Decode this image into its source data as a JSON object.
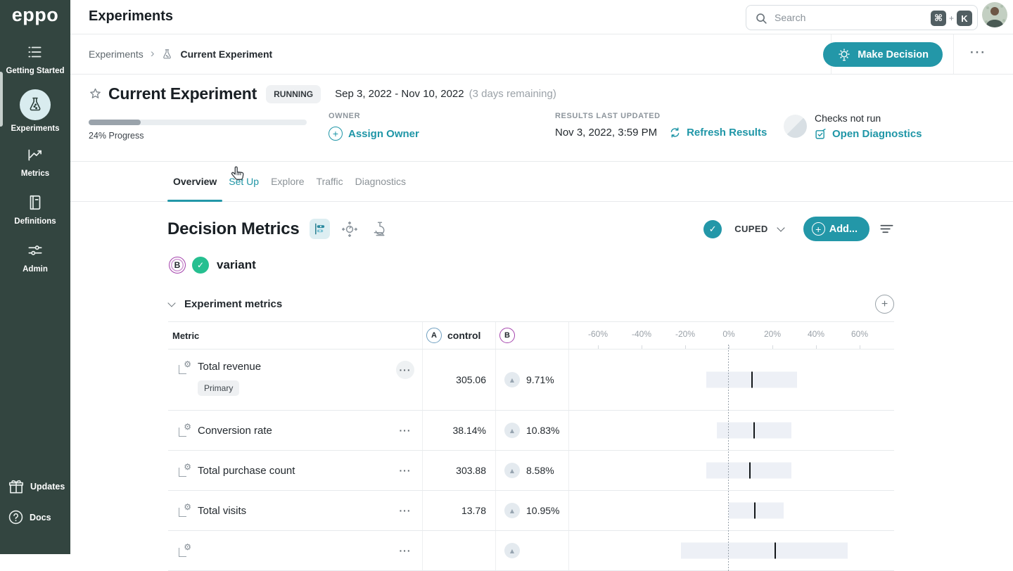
{
  "colors": {
    "accent_teal": "#2397a8",
    "sidebar_green": "#334540",
    "variant_purple": "#a544ad",
    "control_blue": "#6f9fc0",
    "success_green": "#26bf90"
  },
  "sidebar": {
    "logo": "eppo",
    "items": [
      {
        "label": "Getting Started",
        "icon": "list-icon"
      },
      {
        "label": "Experiments",
        "icon": "flask-icon",
        "active": true
      },
      {
        "label": "Metrics",
        "icon": "trend-icon"
      },
      {
        "label": "Definitions",
        "icon": "book-icon"
      },
      {
        "label": "Admin",
        "icon": "sliders-icon"
      }
    ],
    "footer": [
      {
        "label": "Updates",
        "icon": "gift-icon"
      },
      {
        "label": "Docs",
        "icon": "question-icon"
      }
    ]
  },
  "topbar": {
    "title": "Experiments",
    "search_placeholder": "Search",
    "shortcut": {
      "mod": "⌘",
      "plus": "+",
      "key": "K"
    }
  },
  "breadcrumb_bar": {
    "parent": "Experiments",
    "current": "Current Experiment",
    "make_decision": "Make Decision",
    "more": "···"
  },
  "experiment_summary": {
    "title": "Current Experiment",
    "status": "RUNNING",
    "date_range": "Sep 3, 2022 - Nov 10, 2022",
    "days_remaining": "(3 days remaining)",
    "progress_percent": 24,
    "progress_label": "24% Progress",
    "owner_label": "OWNER",
    "assign_owner": "Assign Owner",
    "results_label": "RESULTS LAST UPDATED",
    "results_value": "Nov 3, 2022, 3:59 PM",
    "refresh": "Refresh Results",
    "checks_status": "Checks not run",
    "open_diagnostics": "Open Diagnostics"
  },
  "tabs": [
    {
      "label": "Overview",
      "state": "active"
    },
    {
      "label": "Set Up",
      "state": "hovered"
    },
    {
      "label": "Explore",
      "state": "default"
    },
    {
      "label": "Traffic",
      "state": "default"
    },
    {
      "label": "Diagnostics",
      "state": "default"
    }
  ],
  "decision_metrics": {
    "title": "Decision Metrics",
    "view_toggle": "CUPED",
    "add_button": "Add...",
    "variant_badge": "B",
    "variant_name": "variant",
    "section_title": "Experiment metrics"
  },
  "metrics_table": {
    "header": {
      "metric": "Metric",
      "control_badge": "A",
      "control_label": "control",
      "treatment_badge": "B"
    },
    "axis_ticks": [
      {
        "label": "-60%",
        "value": -60
      },
      {
        "label": "-40%",
        "value": -40
      },
      {
        "label": "-20%",
        "value": -20
      },
      {
        "label": "0%",
        "value": 0
      },
      {
        "label": "20%",
        "value": 20
      },
      {
        "label": "40%",
        "value": 40
      },
      {
        "label": "60%",
        "value": 60
      }
    ],
    "rows": [
      {
        "name": "Total revenue",
        "tag": "Primary",
        "control": "305.06",
        "lift": "9.71%",
        "direction": "up",
        "ci_low": -10.3,
        "ci_high": 31.3,
        "mean": 10.6,
        "more_bg": true
      },
      {
        "name": "Conversion rate",
        "control": "38.14%",
        "lift": "10.83%",
        "direction": "up",
        "ci_low": -5.5,
        "ci_high": 28.7,
        "mean": 11.6
      },
      {
        "name": "Total purchase count",
        "control": "303.88",
        "lift": "8.58%",
        "direction": "up",
        "ci_low": -10.3,
        "ci_high": 28.7,
        "mean": 9.7
      },
      {
        "name": "Total visits",
        "control": "13.78",
        "lift": "10.95%",
        "direction": "up",
        "ci_low": 0,
        "ci_high": 25.2,
        "mean": 11.9
      },
      {
        "name": "",
        "control": "",
        "lift": "",
        "direction": "up",
        "ci_low": -21.9,
        "ci_high": 54.5,
        "mean": 21.3,
        "partial": true
      }
    ]
  }
}
